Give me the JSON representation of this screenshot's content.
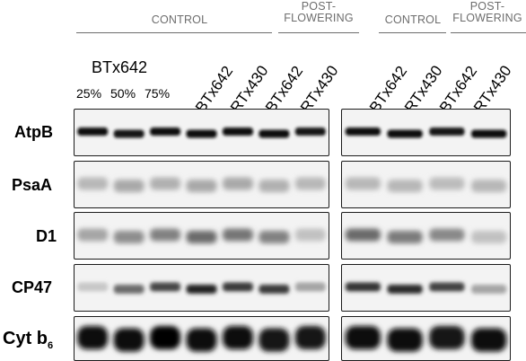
{
  "headers": {
    "left_control": "CONTROL",
    "left_post": [
      "POST-",
      "FLOWERING"
    ],
    "right_control": "CONTROL",
    "right_post": [
      "POST-",
      "FLOWERING"
    ]
  },
  "cultivar_label": "BTx642",
  "percentages": [
    "25%",
    "50%",
    "75%"
  ],
  "lanes_left": [
    "BTx642",
    "RTx430",
    "BTx642",
    "RTx430"
  ],
  "lanes_right": [
    "BTx642",
    "RTx430",
    "BTx642",
    "RTx430"
  ],
  "rows": [
    {
      "label": "AtpB"
    },
    {
      "label": "PsaA"
    },
    {
      "label": "D1"
    },
    {
      "label": "CP47"
    },
    {
      "label": "Cyt b",
      "sub": "6"
    }
  ],
  "band_intensity": {
    "left": [
      [
        0.95,
        0.92,
        0.93,
        0.95,
        0.97,
        0.93,
        0.92
      ],
      [
        0.22,
        0.28,
        0.25,
        0.28,
        0.28,
        0.25,
        0.22
      ],
      [
        0.3,
        0.4,
        0.45,
        0.55,
        0.5,
        0.45,
        0.18
      ],
      [
        0.15,
        0.55,
        0.7,
        0.85,
        0.75,
        0.75,
        0.3
      ],
      [
        0.95,
        0.95,
        0.98,
        0.95,
        0.95,
        0.92,
        0.92
      ]
    ],
    "right": [
      [
        0.95,
        0.93,
        0.9,
        0.95
      ],
      [
        0.22,
        0.22,
        0.2,
        0.22
      ],
      [
        0.55,
        0.48,
        0.42,
        0.18
      ],
      [
        0.78,
        0.82,
        0.72,
        0.3
      ],
      [
        0.95,
        0.95,
        0.92,
        0.97
      ]
    ]
  }
}
